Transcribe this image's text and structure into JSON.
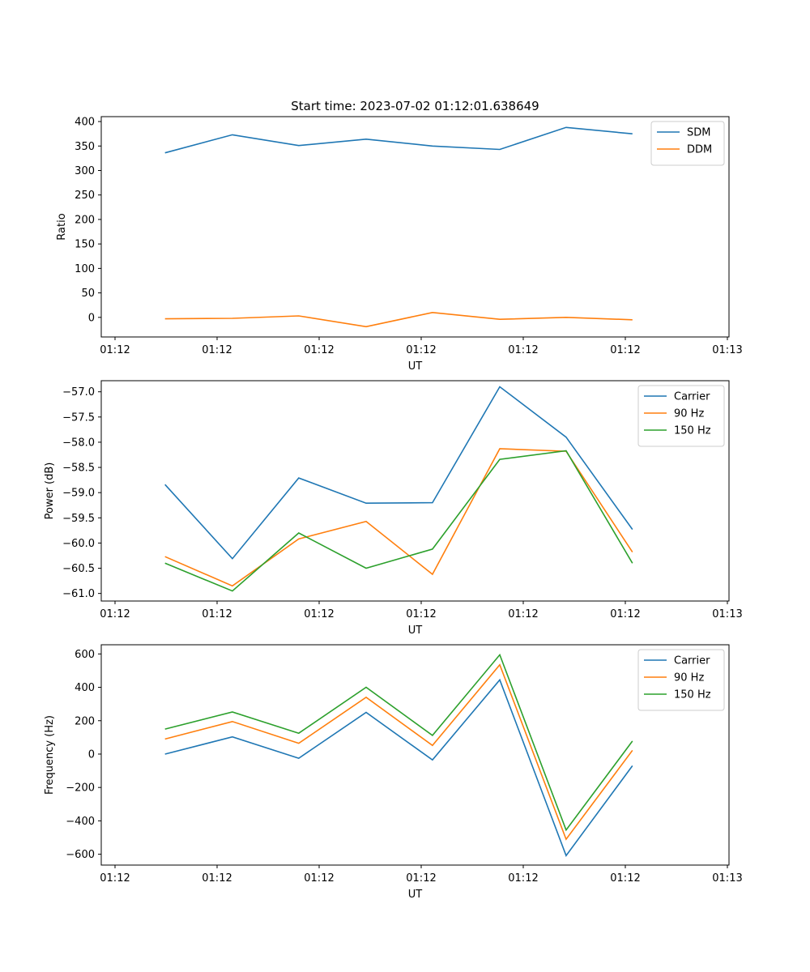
{
  "figure": {
    "title": "Start time: 2023-07-02 01:12:01.638649"
  },
  "colors": {
    "blue": "#1f77b4",
    "orange": "#ff7f0e",
    "green": "#2ca02c"
  },
  "chart_data": [
    {
      "type": "line",
      "title": "Start time: 2023-07-02 01:12:01.638649",
      "xlabel": "UT",
      "ylabel": "Ratio",
      "xlim": [
        0,
        6
      ],
      "x_ticks": [
        0,
        1,
        2,
        3,
        4,
        5,
        6
      ],
      "x_tick_labels": [
        "01:12",
        "01:12",
        "01:12",
        "01:12",
        "01:12",
        "01:12",
        "01:13"
      ],
      "ylim": [
        -40,
        410
      ],
      "y_ticks": [
        0,
        50,
        100,
        150,
        200,
        250,
        300,
        350,
        400
      ],
      "y_tick_labels": [
        "0",
        "50",
        "100",
        "150",
        "200",
        "250",
        "300",
        "350",
        "400"
      ],
      "legend_position": "top-right",
      "x": [
        0.49,
        1.15,
        1.8,
        2.46,
        3.11,
        3.77,
        4.42,
        5.07
      ],
      "series": [
        {
          "name": "SDM",
          "color": "#1f77b4",
          "values": [
            336,
            373,
            351,
            364,
            350,
            343,
            388,
            375
          ]
        },
        {
          "name": "DDM",
          "color": "#ff7f0e",
          "values": [
            -3,
            -2,
            3,
            -19,
            10,
            -4,
            0,
            -5
          ]
        }
      ]
    },
    {
      "type": "line",
      "title": "",
      "xlabel": "UT",
      "ylabel": "Power (dB)",
      "xlim": [
        0,
        6
      ],
      "x_ticks": [
        0,
        1,
        2,
        3,
        4,
        5,
        6
      ],
      "x_tick_labels": [
        "01:12",
        "01:12",
        "01:12",
        "01:12",
        "01:12",
        "01:12",
        "01:13"
      ],
      "ylim": [
        -61.15,
        -56.78
      ],
      "y_ticks": [
        -61.0,
        -60.5,
        -60.0,
        -59.5,
        -59.0,
        -58.5,
        -58.0,
        -57.5,
        -57.0
      ],
      "y_tick_labels": [
        "−61.0",
        "−60.5",
        "−60.0",
        "−59.5",
        "−59.0",
        "−58.5",
        "−58.0",
        "−57.5",
        "−57.0"
      ],
      "legend_position": "top-right",
      "x": [
        0.49,
        1.15,
        1.8,
        2.46,
        3.11,
        3.77,
        4.42,
        5.07
      ],
      "series": [
        {
          "name": "Carrier",
          "color": "#1f77b4",
          "values": [
            -58.84,
            -60.31,
            -58.71,
            -59.21,
            -59.2,
            -56.9,
            -57.9,
            -59.73
          ]
        },
        {
          "name": "90 Hz",
          "color": "#ff7f0e",
          "values": [
            -60.27,
            -60.85,
            -59.92,
            -59.57,
            -60.62,
            -58.13,
            -58.18,
            -60.18
          ]
        },
        {
          "name": "150 Hz",
          "color": "#2ca02c",
          "values": [
            -60.4,
            -60.95,
            -59.8,
            -60.5,
            -60.12,
            -58.34,
            -58.17,
            -60.4
          ]
        }
      ]
    },
    {
      "type": "line",
      "title": "",
      "xlabel": "UT",
      "ylabel": "Frequency (Hz)",
      "xlim": [
        0,
        6
      ],
      "x_ticks": [
        0,
        1,
        2,
        3,
        4,
        5,
        6
      ],
      "x_tick_labels": [
        "01:12",
        "01:12",
        "01:12",
        "01:12",
        "01:12",
        "01:12",
        "01:13"
      ],
      "ylim": [
        -665,
        655
      ],
      "y_ticks": [
        -600,
        -400,
        -200,
        0,
        200,
        400,
        600
      ],
      "y_tick_labels": [
        "−600",
        "−400",
        "−200",
        "0",
        "200",
        "400",
        "600"
      ],
      "legend_position": "top-right",
      "x": [
        0.49,
        1.15,
        1.8,
        2.46,
        3.11,
        3.77,
        4.42,
        5.07
      ],
      "series": [
        {
          "name": "Carrier",
          "color": "#1f77b4",
          "values": [
            0,
            103,
            -25,
            250,
            -35,
            445,
            -608,
            -70
          ]
        },
        {
          "name": "90 Hz",
          "color": "#ff7f0e",
          "values": [
            90,
            195,
            65,
            340,
            52,
            535,
            -510,
            22
          ]
        },
        {
          "name": "150 Hz",
          "color": "#2ca02c",
          "values": [
            150,
            252,
            125,
            400,
            112,
            595,
            -455,
            78
          ]
        }
      ]
    }
  ]
}
